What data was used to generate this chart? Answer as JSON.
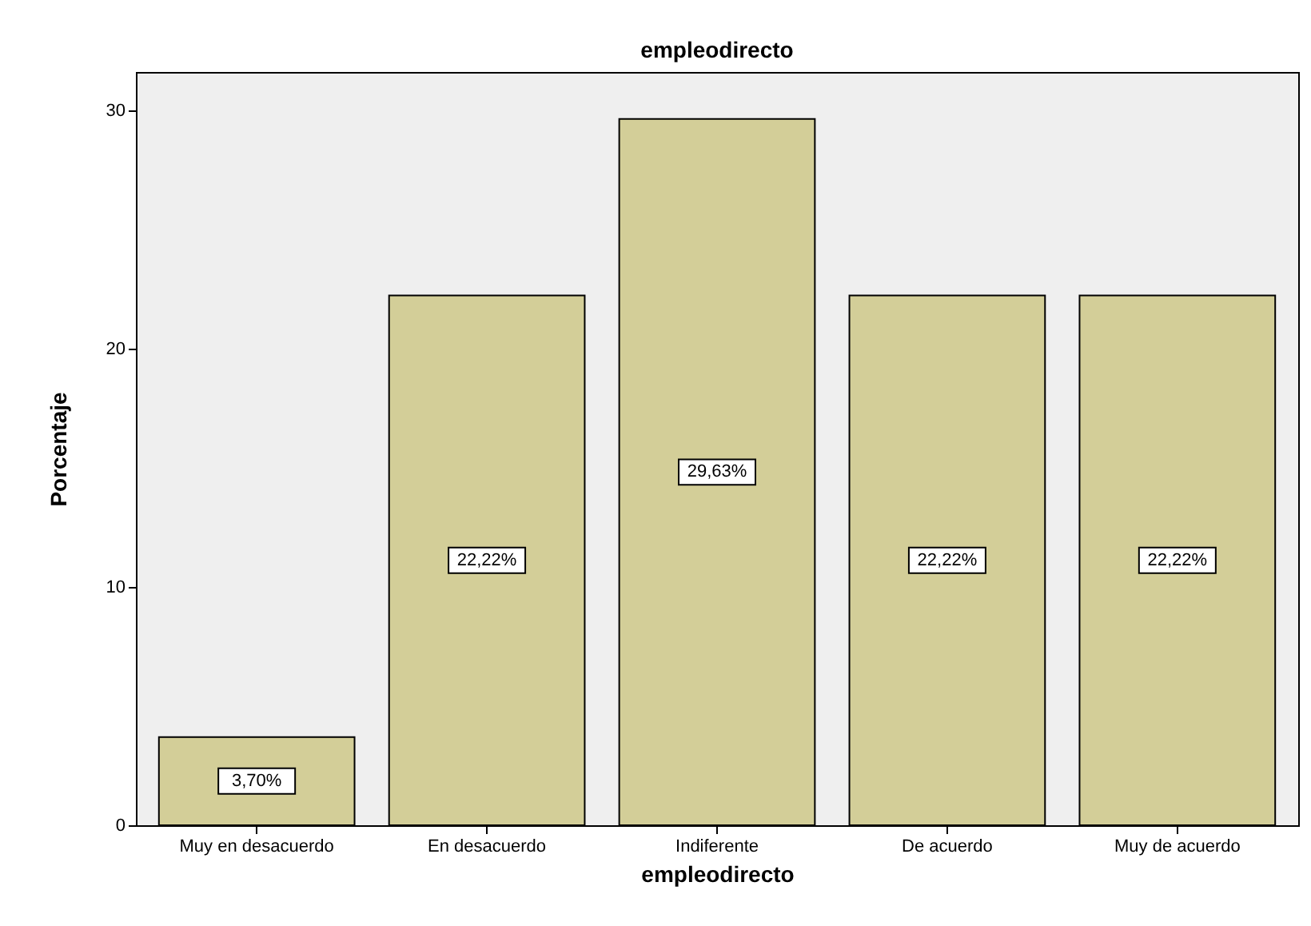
{
  "chart_data": {
    "type": "bar",
    "title": "empleodirecto",
    "xlabel": "empleodirecto",
    "ylabel": "Porcentaje",
    "categories": [
      "Muy en desacuerdo",
      "En desacuerdo",
      "Indiferente",
      "De acuerdo",
      "Muy de acuerdo"
    ],
    "values": [
      3.7,
      22.22,
      29.63,
      22.22,
      22.22
    ],
    "value_labels": [
      "3,70%",
      "22,22%",
      "29,63%",
      "22,22%",
      "22,22%"
    ],
    "color": "#d3ce98",
    "ylim": [
      0,
      31.6
    ],
    "yticks": [
      0,
      10,
      20,
      30
    ],
    "grid": false
  }
}
